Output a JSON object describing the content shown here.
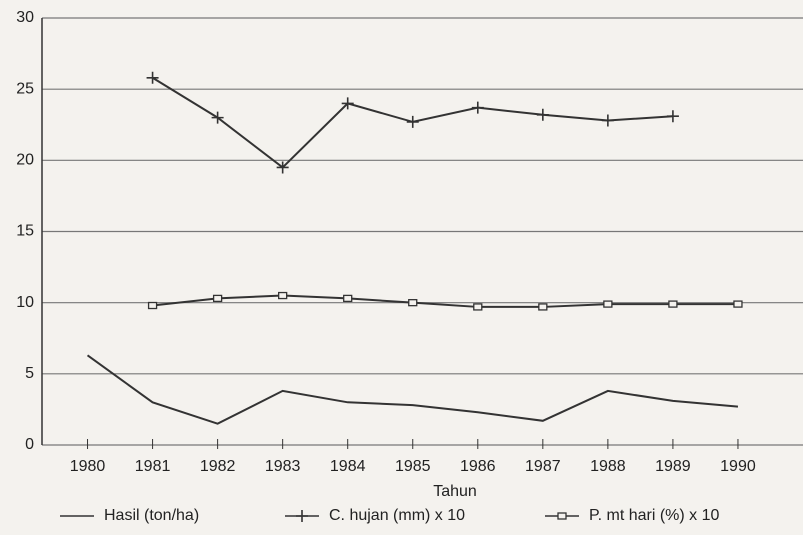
{
  "chart_data": {
    "type": "line",
    "x": [
      1980,
      1981,
      1982,
      1983,
      1984,
      1985,
      1986,
      1987,
      1988,
      1989,
      1990
    ],
    "xlim": [
      1979.3,
      1991
    ],
    "xticks": [
      1980,
      1981,
      1982,
      1983,
      1984,
      1985,
      1986,
      1987,
      1988,
      1989,
      1990
    ],
    "ylim": [
      0,
      30
    ],
    "yticks": [
      0,
      5,
      10,
      15,
      20,
      25,
      30
    ],
    "grid": true,
    "x_label": "Tahun",
    "legend": "bottom",
    "series": [
      {
        "name": "Hasil (ton/ha)",
        "color": "#333333",
        "marker": "none",
        "values": [
          6.3,
          3.0,
          1.5,
          3.8,
          3.0,
          2.8,
          2.3,
          1.7,
          3.8,
          3.1,
          2.7
        ]
      },
      {
        "name": "C. hujan (mm) x 10",
        "color": "#333333",
        "marker": "plus",
        "values": [
          null,
          25.8,
          23.0,
          19.5,
          24.0,
          22.7,
          23.7,
          23.2,
          22.8,
          23.1,
          null
        ]
      },
      {
        "name": "P. mt hari (%) x 10",
        "color": "#333333",
        "marker": "square",
        "values": [
          null,
          9.8,
          10.3,
          10.5,
          10.3,
          10.0,
          9.7,
          9.7,
          9.9,
          9.9,
          9.9
        ]
      }
    ]
  }
}
